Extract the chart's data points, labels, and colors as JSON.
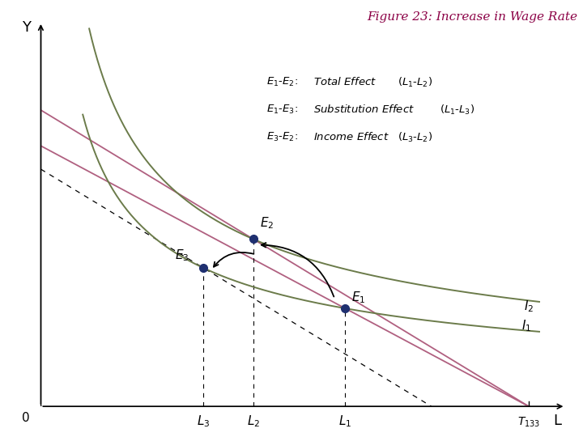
{
  "title": "Figure 23: Increase in Wage Rate",
  "title_color": "#8B0045",
  "xlabel": "L",
  "ylabel": "Y",
  "xlim": [
    0,
    10
  ],
  "ylim": [
    0,
    10
  ],
  "T_x": 9.3,
  "L1_x": 5.8,
  "L2_x": 4.05,
  "L3_x": 3.1,
  "E1": [
    5.8,
    2.55
  ],
  "E2": [
    4.05,
    4.35
  ],
  "E3": [
    3.1,
    3.6
  ],
  "point_color": "#1F3070",
  "ic_color": "#6B7B4A",
  "bl_color": "#B06080"
}
